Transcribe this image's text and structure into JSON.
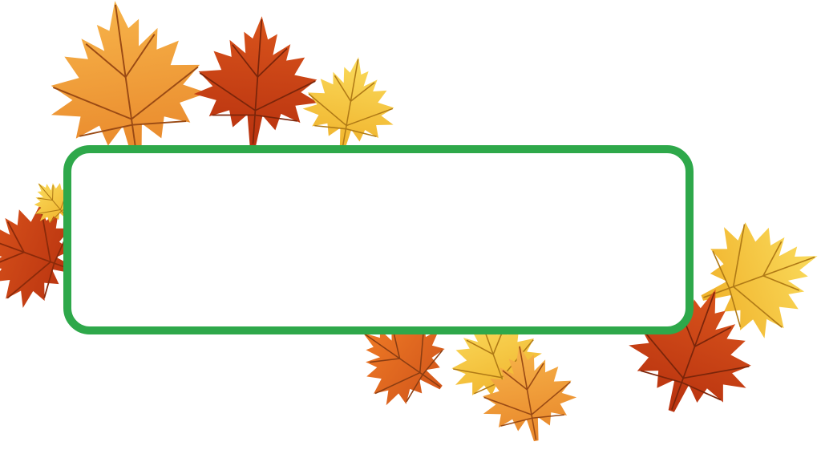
{
  "banner": {
    "text": "",
    "border_color": "#2ea84a",
    "fill_color": "#ffffff"
  },
  "decoration": {
    "leaf_icon": "maple-leaf-icon",
    "palette": {
      "light_orange": "#f2a23a",
      "deep_orange": "#e2661e",
      "red_orange": "#cf3f17",
      "yellow": "#f6c631",
      "pale_yellow": "#f8d85a",
      "vein": "#8a3d12"
    }
  }
}
